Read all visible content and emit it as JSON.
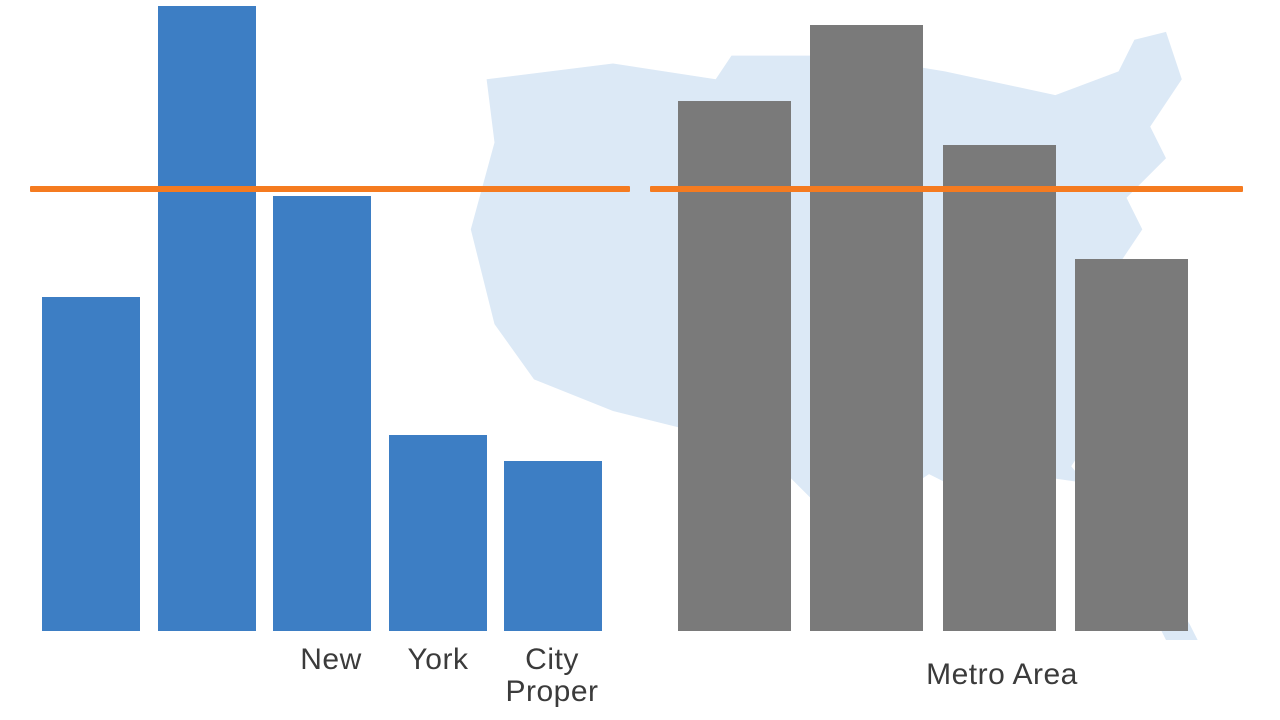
{
  "page": {
    "background_color": "#ffffff",
    "text_color": "#3b3b3b"
  },
  "map": {
    "icon": "us-map-silhouette",
    "fill_color": "#dce9f6"
  },
  "chart_data": {
    "type": "bar",
    "title": "",
    "xlabel": "",
    "ylabel": "",
    "ylim": [
      0,
      100
    ],
    "grid": false,
    "legend": "none",
    "series": [
      {
        "name": "New York City Proper",
        "color": "#3d7ec4",
        "values": [
          53,
          99,
          69,
          31,
          27
        ]
      },
      {
        "name": "Metro Area",
        "color": "#7a7a7a",
        "values": [
          84,
          96,
          77,
          59
        ]
      }
    ],
    "reference_line": {
      "value": 70,
      "color": "#f57b20"
    },
    "axis_labels": {
      "left_group_words": [
        "New",
        "York",
        "City",
        "Proper"
      ],
      "right_group": "Metro Area"
    }
  },
  "labels": {
    "left_word_1": "New",
    "left_word_2": "York",
    "left_word_3": "City",
    "left_word_4": "Proper",
    "right_label": "Metro Area"
  }
}
